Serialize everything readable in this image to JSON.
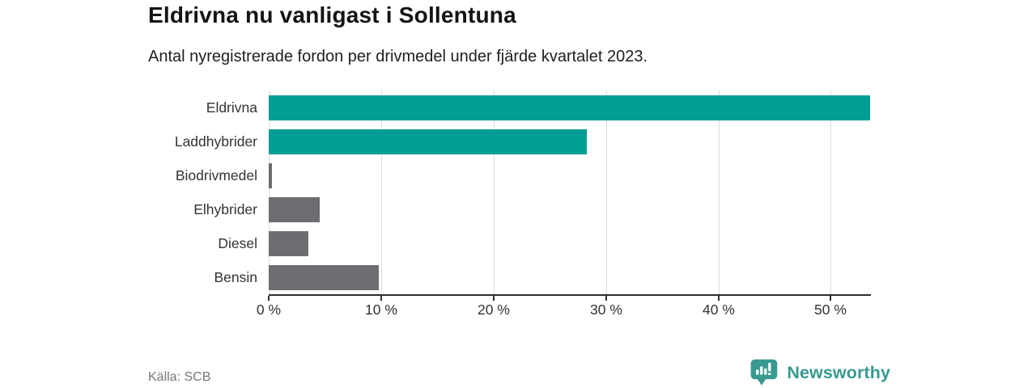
{
  "chart_data": {
    "type": "bar",
    "orientation": "horizontal",
    "title": "Eldrivna nu vanligast i Sollentuna",
    "subtitle": "Antal nyregistrerade fordon per drivmedel under fjärde kvartalet 2023.",
    "categories": [
      "Eldrivna",
      "Laddhybrider",
      "Biodrivmedel",
      "Elhybrider",
      "Diesel",
      "Bensin"
    ],
    "values": [
      53.5,
      28.3,
      0.3,
      4.5,
      3.5,
      9.8
    ],
    "unit": "%",
    "xlabel": "",
    "ylabel": "",
    "xlim": [
      0,
      53.5
    ],
    "x_ticks": [
      0,
      10,
      20,
      30,
      40,
      50
    ],
    "x_tick_labels": [
      "0 %",
      "10 %",
      "20 %",
      "30 %",
      "40 %",
      "50 %"
    ],
    "grid": "vertical-only",
    "legend": "none",
    "highlight_color": "#009e94",
    "default_color": "#6c6d70",
    "bar_colors": [
      "#009e94",
      "#009e94",
      "#6c6d70",
      "#6c6d70",
      "#6c6d70",
      "#6c6d70"
    ],
    "gridline_color": "#dcdcdc",
    "axis_color": "#2e2e2e"
  },
  "source": {
    "label": "Källa: SCB"
  },
  "branding": {
    "name": "Newsworthy",
    "color": "#38998f",
    "icon": "newsworthy-pin-barchart-icon"
  }
}
